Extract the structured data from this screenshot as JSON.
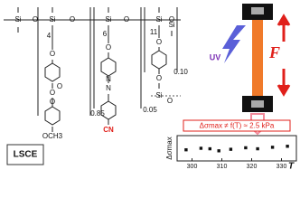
{
  "chart_data": {
    "type": "scatter",
    "annotation": "Δσmax ≠ f(T) ≈ 2.5 kPa",
    "x_label": "T",
    "y_label": "Δσmax",
    "x": [
      298,
      303,
      306,
      309,
      313,
      318,
      322,
      327,
      332
    ],
    "values": [
      2.2,
      2.5,
      2.4,
      2.0,
      2.3,
      2.6,
      2.4,
      2.7,
      2.9
    ],
    "color": "#111111",
    "annotation_color": "#e0201b",
    "xlim": [
      295,
      335
    ],
    "xticks": [
      300,
      310,
      320,
      330
    ],
    "ylim": [
      0,
      5
    ]
  },
  "diagram": {
    "labels": [
      "Si",
      "O",
      "Si",
      "O",
      "Si",
      "O",
      "Si",
      "O",
      "Si",
      "4",
      "O",
      "O",
      "O",
      "O",
      "OCH3",
      "0.85",
      "6",
      "O",
      "N",
      "N",
      "CN",
      "0.05",
      "11",
      "O",
      "O",
      "Si",
      "O",
      "0.10",
      "UV",
      "F",
      "LSCE"
    ]
  }
}
